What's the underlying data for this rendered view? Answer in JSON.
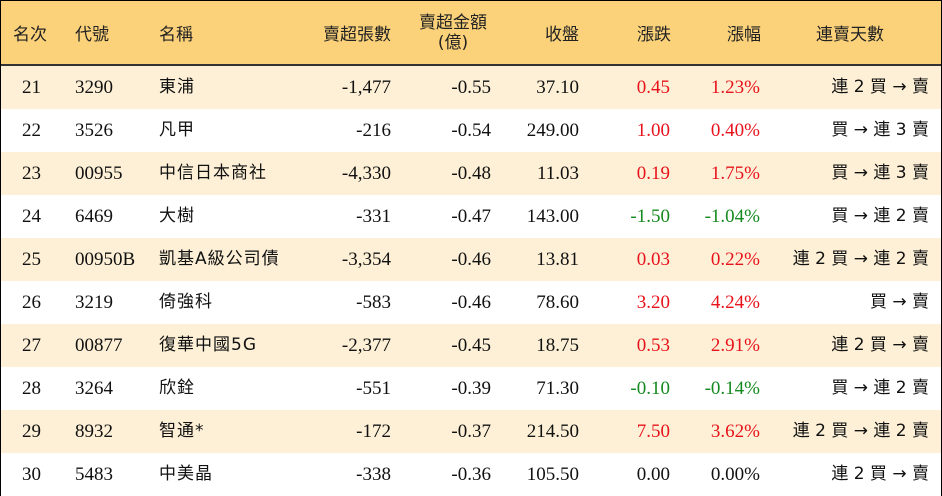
{
  "headers": {
    "rank": "名次",
    "code": "代號",
    "name": "名稱",
    "net_sell_lots": "賣超張數",
    "net_sell_amount_l1": "賣超金額",
    "net_sell_amount_l2": "(億)",
    "close": "收盤",
    "change": "漲跌",
    "change_pct": "漲幅",
    "streak": "連賣天數"
  },
  "colors": {
    "header_bg": "#fbd27a",
    "odd_row_bg": "#fdf0d6",
    "up": "#e8121b",
    "down": "#14891e"
  },
  "rows": [
    {
      "rank": "21",
      "code": "3290",
      "name": "東浦",
      "lots": "-1,477",
      "amount": "-0.55",
      "close": "37.10",
      "change": "0.45",
      "pct": "1.23%",
      "streak": "連 2 買 → 賣",
      "dir": "up"
    },
    {
      "rank": "22",
      "code": "3526",
      "name": "凡甲",
      "lots": "-216",
      "amount": "-0.54",
      "close": "249.00",
      "change": "1.00",
      "pct": "0.40%",
      "streak": "買 → 連 3 賣",
      "dir": "up"
    },
    {
      "rank": "23",
      "code": "00955",
      "name": "中信日本商社",
      "lots": "-4,330",
      "amount": "-0.48",
      "close": "11.03",
      "change": "0.19",
      "pct": "1.75%",
      "streak": "買 → 連 3 賣",
      "dir": "up"
    },
    {
      "rank": "24",
      "code": "6469",
      "name": "大樹",
      "lots": "-331",
      "amount": "-0.47",
      "close": "143.00",
      "change": "-1.50",
      "pct": "-1.04%",
      "streak": "買 → 連 2 賣",
      "dir": "down"
    },
    {
      "rank": "25",
      "code": "00950B",
      "name": "凱基A級公司債",
      "lots": "-3,354",
      "amount": "-0.46",
      "close": "13.81",
      "change": "0.03",
      "pct": "0.22%",
      "streak": "連 2 買 → 連 2 賣",
      "dir": "up"
    },
    {
      "rank": "26",
      "code": "3219",
      "name": "倚強科",
      "lots": "-583",
      "amount": "-0.46",
      "close": "78.60",
      "change": "3.20",
      "pct": "4.24%",
      "streak": "買 → 賣",
      "dir": "up"
    },
    {
      "rank": "27",
      "code": "00877",
      "name": "復華中國5G",
      "lots": "-2,377",
      "amount": "-0.45",
      "close": "18.75",
      "change": "0.53",
      "pct": "2.91%",
      "streak": "連 2 買 → 賣",
      "dir": "up"
    },
    {
      "rank": "28",
      "code": "3264",
      "name": "欣銓",
      "lots": "-551",
      "amount": "-0.39",
      "close": "71.30",
      "change": "-0.10",
      "pct": "-0.14%",
      "streak": "買 → 連 2 賣",
      "dir": "down"
    },
    {
      "rank": "29",
      "code": "8932",
      "name": "智通*",
      "lots": "-172",
      "amount": "-0.37",
      "close": "214.50",
      "change": "7.50",
      "pct": "3.62%",
      "streak": "連 2 買 → 連 2 賣",
      "dir": "up"
    },
    {
      "rank": "30",
      "code": "5483",
      "name": "中美晶",
      "lots": "-338",
      "amount": "-0.36",
      "close": "105.50",
      "change": "0.00",
      "pct": "0.00%",
      "streak": "連 2 買 → 賣",
      "dir": "flat"
    }
  ]
}
